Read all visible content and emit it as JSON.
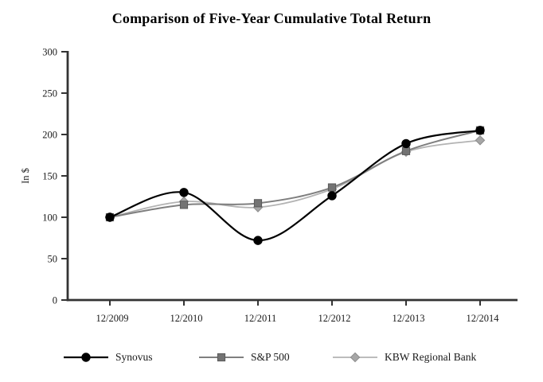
{
  "chart_data": {
    "type": "line",
    "title": "Comparison of Five-Year Cumulative Total Return",
    "xlabel": "",
    "ylabel": "In $",
    "categories": [
      "12/2009",
      "12/2010",
      "12/2011",
      "12/2012",
      "12/2013",
      "12/2014"
    ],
    "ylim": [
      0,
      300
    ],
    "yticks": [
      0,
      50,
      100,
      150,
      200,
      250,
      300
    ],
    "grid": false,
    "line_style": "smooth",
    "legend_position": "bottom",
    "series": [
      {
        "name": "Synovus",
        "values": [
          100,
          130,
          72,
          126,
          189,
          205
        ],
        "color": "#000000",
        "line_width": 2.2,
        "marker": "circle",
        "marker_fill": "#000000",
        "marker_stroke": "#000000"
      },
      {
        "name": "S&P 500",
        "values": [
          100,
          115,
          117,
          136,
          180,
          205
        ],
        "color": "#7f7f7f",
        "line_width": 2,
        "marker": "square",
        "marker_fill": "#737373",
        "marker_stroke": "#595959"
      },
      {
        "name": "KBW Regional Bank",
        "values": [
          100,
          119,
          112,
          134,
          179,
          193
        ],
        "color": "#b3b3b3",
        "line_width": 1.8,
        "marker": "diamond",
        "marker_fill": "#a6a6a6",
        "marker_stroke": "#8c8c8c"
      }
    ]
  },
  "colors": {
    "axis": "#333333",
    "tick_text": "#1a1a1a",
    "background": "#ffffff"
  }
}
